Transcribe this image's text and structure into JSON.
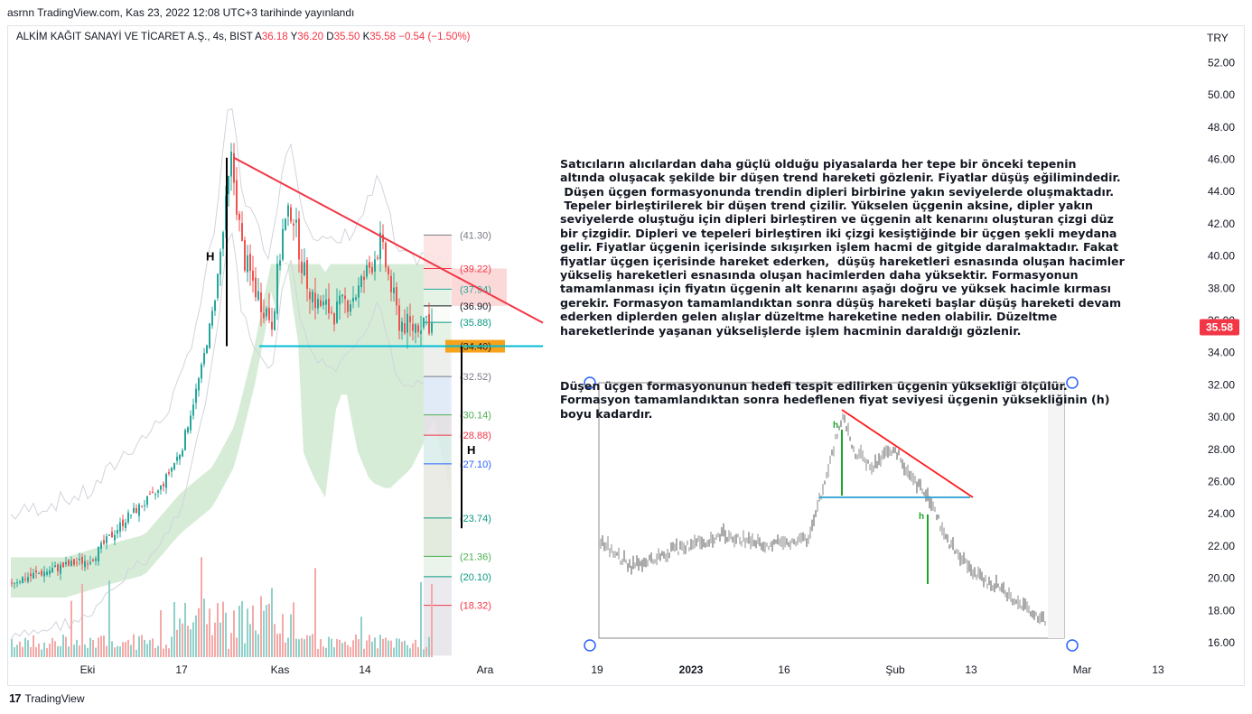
{
  "header": {
    "published_line": "asrnn TradingView.com, Kas 23, 2022 12:08 UTC+3 tarihinde yayınlandı",
    "symbol": "ALKİM KAĞIT SANAYİ VE TİCARET A.Ş., 4s, BIST",
    "ohlc": {
      "open_label": "A",
      "open": "36.18",
      "high_label": "Y",
      "high": "36.20",
      "low_label": "D",
      "low": "35.50",
      "close_label": "K",
      "close": "35.58",
      "change": "−0.54 (−1.50%)"
    },
    "currency": "TRY"
  },
  "colors": {
    "up": "#26a69a",
    "down": "#ef5350",
    "trendline": "#f23645",
    "support": "#00bcd4",
    "cloud": "#c8e6c9",
    "price_badge": "#f23645"
  },
  "chart_data": {
    "type": "candlestick",
    "y_axis": {
      "ticks": [
        "52.00",
        "50.00",
        "48.00",
        "46.00",
        "44.00",
        "42.00",
        "40.00",
        "38.00",
        "36.00",
        "34.00",
        "32.00",
        "30.00",
        "28.00",
        "26.00",
        "24.00",
        "22.00",
        "20.00",
        "18.00",
        "16.00"
      ],
      "ylim": [
        15.2,
        54.2
      ]
    },
    "x_axis": {
      "ticks": [
        "Eki",
        "17",
        "Kas",
        "14",
        "Ara",
        "19",
        "2023",
        "16",
        "Şub",
        "13",
        "Mar",
        "13"
      ]
    },
    "last_price": "35.58",
    "key_points": [
      {
        "label": "start",
        "price": 19.8
      },
      {
        "label": "rally_high",
        "price": 46.0
      },
      {
        "label": "triangle_upper_start",
        "price": 46.1
      },
      {
        "label": "triangle_support",
        "price": 34.4
      },
      {
        "label": "last",
        "price": 35.58
      }
    ],
    "fib_levels": [
      {
        "label": "(41.30)",
        "price": 41.3,
        "color": "#787b86"
      },
      {
        "label": "(39.22)",
        "price": 39.22,
        "color": "#f23645"
      },
      {
        "label": "(37.94)",
        "price": 37.94,
        "color": "#26a69a"
      },
      {
        "label": "(36.90)",
        "price": 36.9,
        "color": "#131722"
      },
      {
        "label": "(35.88)",
        "price": 35.88,
        "color": "#089981"
      },
      {
        "label": "(34.40)",
        "price": 34.4,
        "color": "#131722"
      },
      {
        "label": "(32.52)",
        "price": 32.52,
        "color": "#787b86"
      },
      {
        "label": "(30.14)",
        "price": 30.14,
        "color": "#4caf50"
      },
      {
        "label": "(28.88)",
        "price": 28.88,
        "color": "#f23645"
      },
      {
        "label": "(27.10)",
        "price": 27.1,
        "color": "#2962ff"
      },
      {
        "label": "(23.74)",
        "price": 23.74,
        "color": "#089981"
      },
      {
        "label": "(21.36)",
        "price": 21.36,
        "color": "#4caf50"
      },
      {
        "label": "(20.10)",
        "price": 20.1,
        "color": "#089981"
      },
      {
        "label": "(18.32)",
        "price": 18.32,
        "color": "#f23645"
      }
    ],
    "height_markers": [
      "H",
      "H"
    ],
    "inset_markers": [
      "h",
      "h"
    ]
  },
  "annotation": {
    "paragraph1": "Satıcıların alıcılardan daha güçlü olduğu piyasalarda her tepe bir önceki tepenin\naltında oluşacak şekilde bir düşen trend hareketi gözlenir. Fiyatlar düşüş eğilimindedir.\n Düşen üçgen formasyonunda trendin dipleri birbirine yakın seviyelerde oluşmaktadır.\n Tepeler birleştirilerek bir düşen trend çizilir. Yükselen üçgenin aksine, dipler yakın\nseviyelerde oluştuğu için dipleri birleştiren ve üçgenin alt kenarını oluşturan çizgi düz\nbir çizgidir. Dipleri ve tepeleri birleştiren iki çizgi kesiştiğinde bir üçgen şekli meydana\ngelir. Fiyatlar üçgenin içerisinde sıkışırken işlem hacmi de gitgide daralmaktadır. Fakat\nfiyatlar üçgen içerisinde hareket ederken,  düşüş hareketleri esnasında oluşan hacimler\nyükseliş hareketleri esnasında oluşan hacimlerden daha yüksektir. Formasyonun\ntamamlanması için fiyatın üçgenin alt kenarını aşağı doğru ve yüksek hacimle kırması\ngerekir. Formasyon tamamlandıktan sonra düşüş hareketi başlar düşüş hareketi devam\nederken diplerden gelen alışlar düzeltme hareketine neden olabilir. Düzeltme\nhareketlerinde yaşanan yükselişlerde işlem hacminin daraldığı gözlenir.",
    "paragraph2": "Düşen üçgen formasyonunun hedefi tespit edilirken üçgenin yüksekliği ölçülür.\nFormasyon tamamlandıktan sonra hedeflenen fiyat seviyesi üçgenin yüksekliğinin (h)\nboyu kadardır."
  },
  "footer": {
    "brand": "TradingView",
    "logo": "17"
  }
}
